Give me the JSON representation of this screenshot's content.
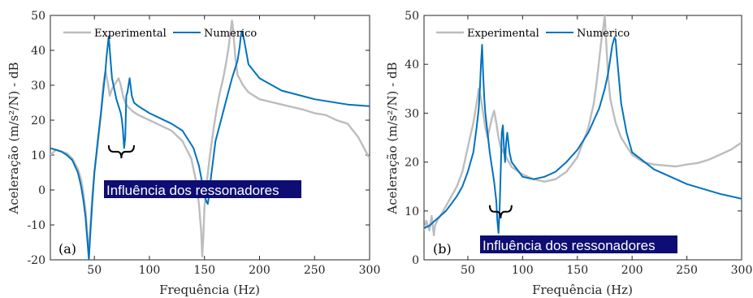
{
  "colors": {
    "experimental": "#bdbdbd",
    "numerico": "#0072bd",
    "annotation_bg": "#0d0d73",
    "annotation_text": "#ffffff",
    "axes": "#262626"
  },
  "chart_data": [
    {
      "type": "line",
      "panel_label": "(a)",
      "xlabel": "Frequência (Hz)",
      "ylabel": "Aceleração (m/s²/N) - dB",
      "xlim": [
        10,
        300
      ],
      "ylim": [
        -20,
        50
      ],
      "xticks": [
        50,
        100,
        150,
        200,
        250,
        300
      ],
      "yticks": [
        -20,
        -10,
        0,
        10,
        20,
        30,
        40,
        50
      ],
      "grid": false,
      "legend": {
        "placement": "top-left",
        "entries": [
          "Experimental",
          "Numerico"
        ]
      },
      "annotation": {
        "text": "Influência dos ressonadores",
        "bracket_x": [
          63,
          86
        ],
        "bracket_y": 10.5
      },
      "series": [
        {
          "name": "Experimental",
          "x": [
            10,
            15,
            20,
            25,
            30,
            35,
            38,
            40,
            42,
            43,
            44,
            45,
            46,
            48,
            50,
            53,
            56,
            58,
            60,
            62,
            64,
            66,
            68,
            70,
            72,
            74,
            76,
            78,
            80,
            85,
            90,
            100,
            110,
            120,
            130,
            138,
            142,
            145,
            147,
            148,
            149,
            150,
            152,
            155,
            158,
            161,
            164,
            167,
            170,
            172,
            174,
            175,
            176,
            178,
            180,
            185,
            190,
            200,
            220,
            240,
            250,
            260,
            270,
            280,
            285,
            290,
            295,
            300
          ],
          "y": [
            10,
            11.5,
            11,
            10.5,
            9,
            6,
            3,
            -1,
            -6,
            -10,
            -15,
            -19,
            -12,
            -2,
            5,
            13,
            22,
            30,
            34,
            31,
            27,
            29,
            30,
            31,
            32,
            30,
            27,
            25,
            24,
            22.5,
            21.5,
            20,
            18.5,
            17,
            14,
            9,
            3,
            -4,
            -12,
            -19,
            -13,
            -5,
            2,
            10,
            17,
            23,
            28,
            32,
            37,
            41,
            46,
            48.5,
            46,
            38,
            33,
            30,
            28,
            26,
            24.5,
            23,
            22,
            21.5,
            20,
            19,
            17,
            15,
            12,
            9
          ]
        },
        {
          "name": "Numerico",
          "x": [
            10,
            15,
            20,
            25,
            30,
            35,
            38,
            40,
            42,
            43,
            44,
            45,
            46,
            48,
            50,
            53,
            56,
            58,
            60,
            61,
            62,
            63,
            64,
            65,
            66,
            68,
            70,
            72,
            74,
            75,
            76,
            77,
            78,
            79,
            80,
            81,
            82,
            84,
            86,
            90,
            100,
            110,
            120,
            130,
            140,
            145,
            148,
            150,
            152,
            153,
            154,
            155,
            156,
            158,
            160,
            165,
            170,
            175,
            180,
            182,
            183,
            184,
            186,
            190,
            200,
            220,
            250,
            280,
            300
          ],
          "y": [
            12,
            11.5,
            11,
            10,
            8.5,
            5,
            1,
            -3,
            -8,
            -12,
            -16,
            -20,
            -14,
            -4,
            5,
            14,
            22,
            28,
            34,
            38,
            41,
            44,
            40,
            36,
            32,
            29,
            26,
            24,
            22,
            20,
            17,
            12,
            15,
            27,
            28,
            30,
            32,
            27,
            25,
            24,
            22,
            20.5,
            19,
            17,
            12,
            7,
            2,
            -1.5,
            -3.5,
            -4,
            -2,
            1,
            4,
            9,
            14,
            20,
            26,
            32,
            37,
            41,
            44,
            45.5,
            43,
            36,
            32,
            28.5,
            26,
            24.5,
            24
          ]
        }
      ]
    },
    {
      "type": "line",
      "panel_label": "(b)",
      "xlabel": "Frequência (Hz)",
      "ylabel": "Aceleração (m/s²/N) - dB",
      "xlim": [
        10,
        300
      ],
      "ylim": [
        0,
        50
      ],
      "xticks": [
        50,
        100,
        150,
        200,
        250,
        300
      ],
      "yticks": [
        0,
        10,
        20,
        30,
        40,
        50
      ],
      "grid": false,
      "legend": {
        "placement": "top-left",
        "entries": [
          "Experimental",
          "Numerico"
        ]
      },
      "annotation": {
        "text": "Influência dos ressonadores",
        "bracket_x": [
          70,
          90
        ],
        "bracket_y": 9.5
      },
      "series": [
        {
          "name": "Experimental",
          "x": [
            10,
            12,
            15,
            17,
            19,
            20,
            22,
            25,
            30,
            35,
            40,
            45,
            50,
            55,
            58,
            60,
            62,
            64,
            66,
            68,
            70,
            72,
            74,
            76,
            78,
            80,
            85,
            90,
            100,
            110,
            120,
            130,
            140,
            150,
            160,
            165,
            168,
            170,
            172,
            174,
            175,
            176,
            178,
            180,
            185,
            190,
            200,
            210,
            220,
            230,
            240,
            250,
            260,
            270,
            280,
            290,
            300
          ],
          "y": [
            6,
            8,
            6,
            9,
            5,
            7,
            8,
            9,
            11,
            13,
            15,
            18,
            23,
            28,
            32,
            35,
            33,
            30,
            27,
            25,
            27,
            29,
            30.5,
            28,
            25,
            23,
            21,
            19,
            17.5,
            16.5,
            16,
            16.5,
            18,
            21,
            27,
            32,
            37,
            41,
            45,
            48,
            50,
            46,
            38,
            33,
            28,
            25,
            21.5,
            20,
            19.5,
            19.3,
            19.1,
            19.5,
            19.8,
            20.5,
            21.5,
            22.5,
            24
          ]
        },
        {
          "name": "Numerico",
          "x": [
            10,
            15,
            20,
            25,
            30,
            35,
            40,
            45,
            50,
            55,
            58,
            60,
            61,
            62,
            63,
            64,
            65,
            66,
            68,
            70,
            72,
            74,
            76,
            77,
            78,
            79,
            80,
            81,
            82,
            83,
            84,
            85,
            86,
            88,
            90,
            100,
            110,
            120,
            130,
            140,
            150,
            160,
            170,
            175,
            178,
            180,
            182,
            184,
            185,
            186,
            188,
            190,
            195,
            200,
            220,
            250,
            280,
            300
          ],
          "y": [
            6.5,
            7,
            8,
            9,
            10,
            11.5,
            13,
            15,
            18,
            22,
            27,
            31,
            35,
            40,
            44,
            38,
            33,
            30,
            26,
            22,
            19,
            16,
            12,
            8,
            5.5,
            10,
            18,
            26,
            27.5,
            23,
            20,
            24,
            26,
            22,
            20,
            17,
            16.5,
            17,
            18,
            20,
            22.5,
            26,
            31,
            35,
            38,
            41,
            44,
            45.5,
            45,
            42,
            37,
            32,
            26,
            22,
            18.5,
            15.5,
            13.5,
            12.5
          ]
        }
      ]
    }
  ]
}
